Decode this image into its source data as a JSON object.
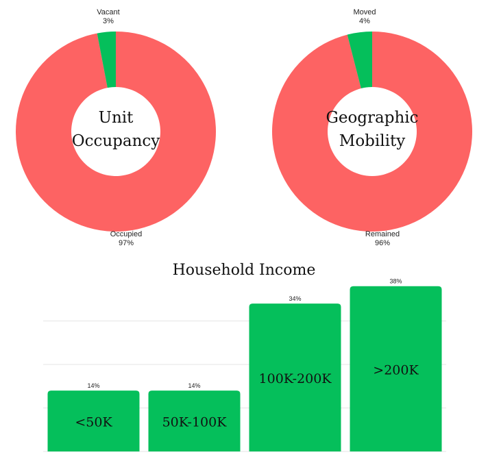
{
  "colors": {
    "red": "#fd6363",
    "green": "#05bf5b",
    "grid": "#e6e6e6",
    "text": "#222222"
  },
  "chart_data": [
    {
      "type": "pie",
      "title_lines": [
        "Unit",
        "Occupancy"
      ],
      "slices": [
        {
          "label": "Occupied",
          "value": 97,
          "display": "97%",
          "color": "#fd6363"
        },
        {
          "label": "Vacant",
          "value": 3,
          "display": "3%",
          "color": "#05bf5b"
        }
      ]
    },
    {
      "type": "pie",
      "title_lines": [
        "Geographic",
        "Mobility"
      ],
      "slices": [
        {
          "label": "Remained",
          "value": 96,
          "display": "96%",
          "color": "#fd6363"
        },
        {
          "label": "Moved",
          "value": 4,
          "display": "4%",
          "color": "#05bf5b"
        }
      ]
    },
    {
      "type": "bar",
      "title": "Household Income",
      "categories": [
        "<50K",
        "50K-100K",
        "100K-200K",
        ">200K"
      ],
      "values": [
        14,
        14,
        34,
        38
      ],
      "value_labels": [
        "14%",
        "14%",
        "34%",
        "38%"
      ],
      "ylim": [
        0,
        40
      ],
      "grid": true,
      "color": "#05bf5b"
    }
  ]
}
